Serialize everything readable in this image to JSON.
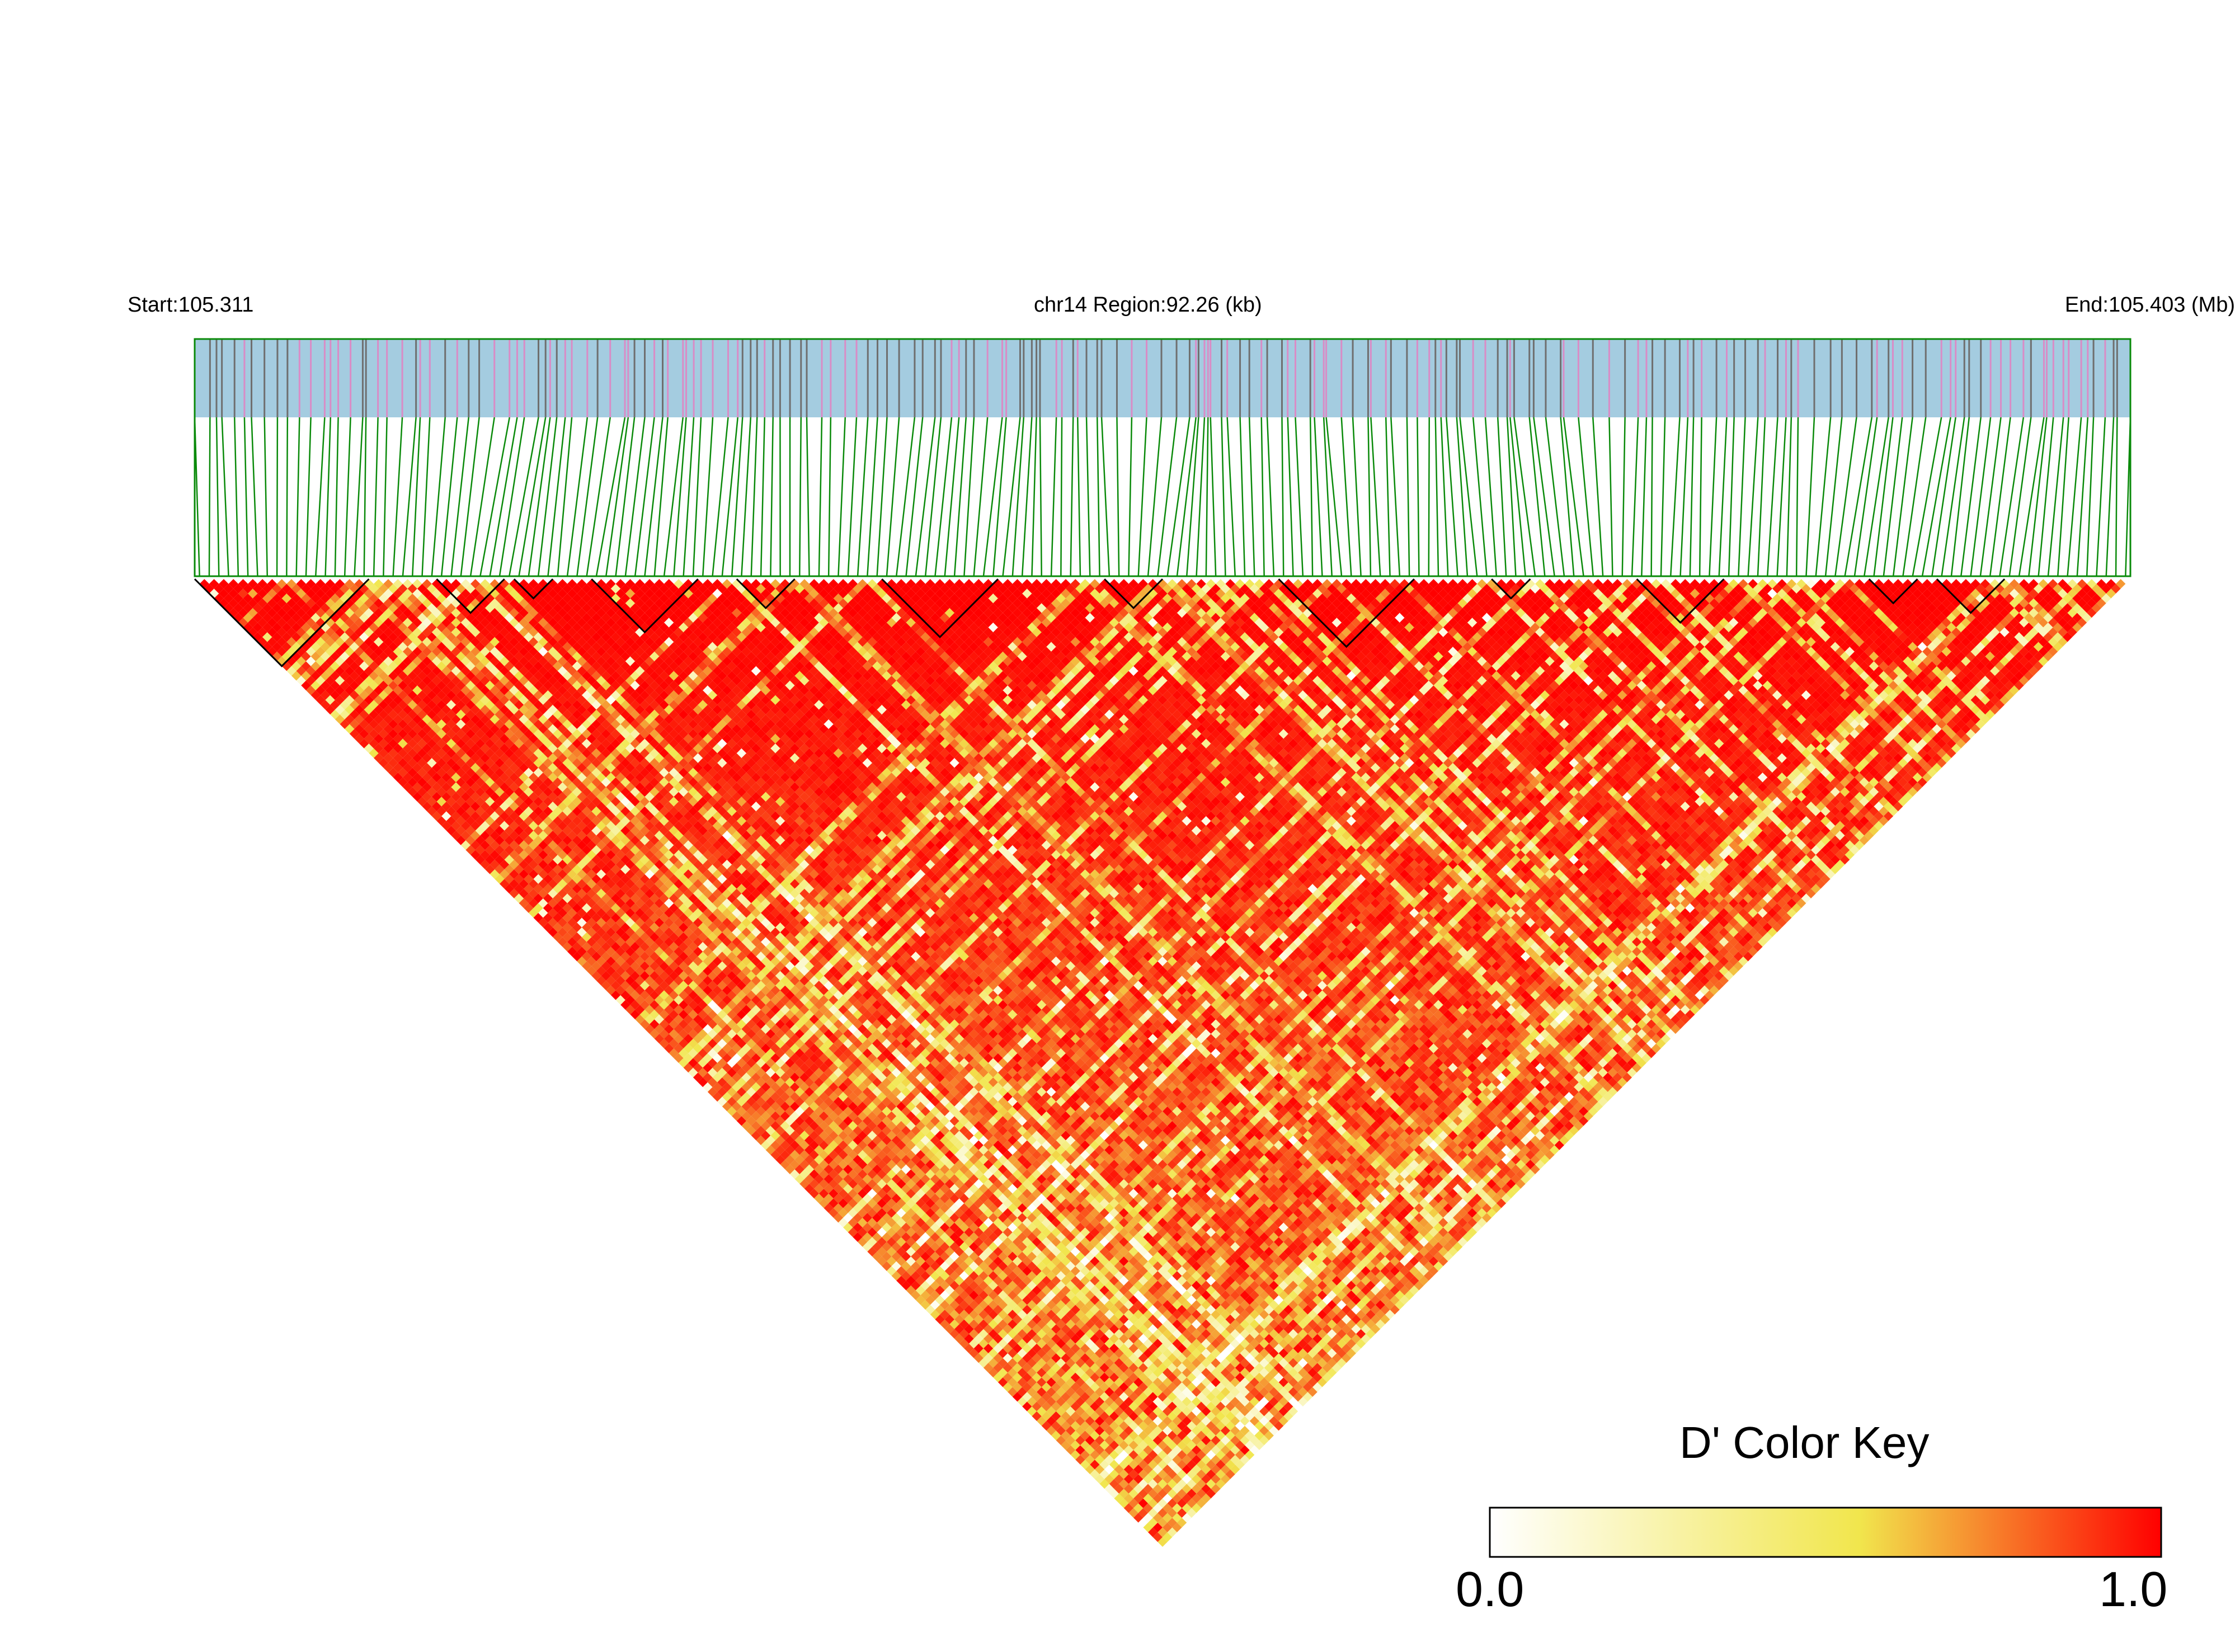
{
  "chart_data": {
    "type": "heatmap",
    "layout": "LD-triangle",
    "labels": {
      "start": "Start:105.311",
      "region": "chr14 Region:92.26 (kb)",
      "end": "End:105.403 (Mb)"
    },
    "region": {
      "chromosome": "chr14",
      "start_mb": 105.311,
      "end_mb": 105.403,
      "length_kb": 92.26
    },
    "snp_count": 200,
    "metric": "D'",
    "haplotype_blocks": [
      {
        "from": 1,
        "to": 18
      },
      {
        "from": 26,
        "to": 32
      },
      {
        "from": 34,
        "to": 37
      },
      {
        "from": 42,
        "to": 52
      },
      {
        "from": 57,
        "to": 62
      },
      {
        "from": 72,
        "to": 83
      },
      {
        "from": 95,
        "to": 100
      },
      {
        "from": 113,
        "to": 126
      },
      {
        "from": 135,
        "to": 138
      },
      {
        "from": 150,
        "to": 158
      },
      {
        "from": 174,
        "to": 178
      },
      {
        "from": 181,
        "to": 187
      }
    ],
    "color_key": {
      "title": "D' Color Key",
      "min_label": "0.0",
      "max_label": "1.0",
      "range": [
        0,
        1
      ],
      "colors": [
        "#ffffff",
        "#f1e64d",
        "#ff0000"
      ]
    },
    "colors": {
      "track_background": "#a4cce0",
      "snp_tick_pink": "#d98cc6",
      "snp_tick_gray": "#6f6f6f",
      "connector_green": "#0a8a0a"
    }
  }
}
